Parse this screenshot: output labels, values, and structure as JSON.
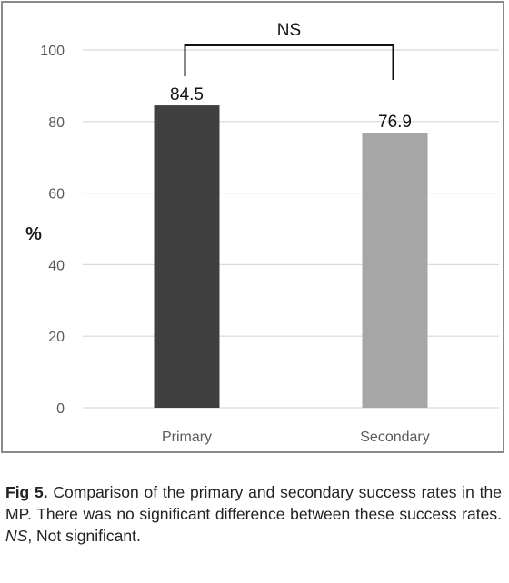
{
  "chart_data": {
    "type": "bar",
    "categories": [
      "Primary",
      "Secondary"
    ],
    "values": [
      84.5,
      76.9
    ],
    "data_labels": [
      "84.5",
      "76.9"
    ],
    "bar_colors": [
      "#404040",
      "#a6a6a6"
    ],
    "ylabel": "%",
    "ylim": [
      0,
      100
    ],
    "yticks": [
      0,
      20,
      40,
      60,
      80,
      100
    ],
    "ytick_labels": [
      "0",
      "20",
      "40",
      "60",
      "80",
      "100"
    ],
    "grid": true,
    "annotation": {
      "text": "NS",
      "between": [
        "Primary",
        "Secondary"
      ]
    }
  },
  "caption": {
    "label": "Fig 5.",
    "text_before": " Comparison of the primary and secondary success rates in the MP. There was no significant difference between these success rates. ",
    "abbr": "NS",
    "text_after": ", Not significant."
  }
}
